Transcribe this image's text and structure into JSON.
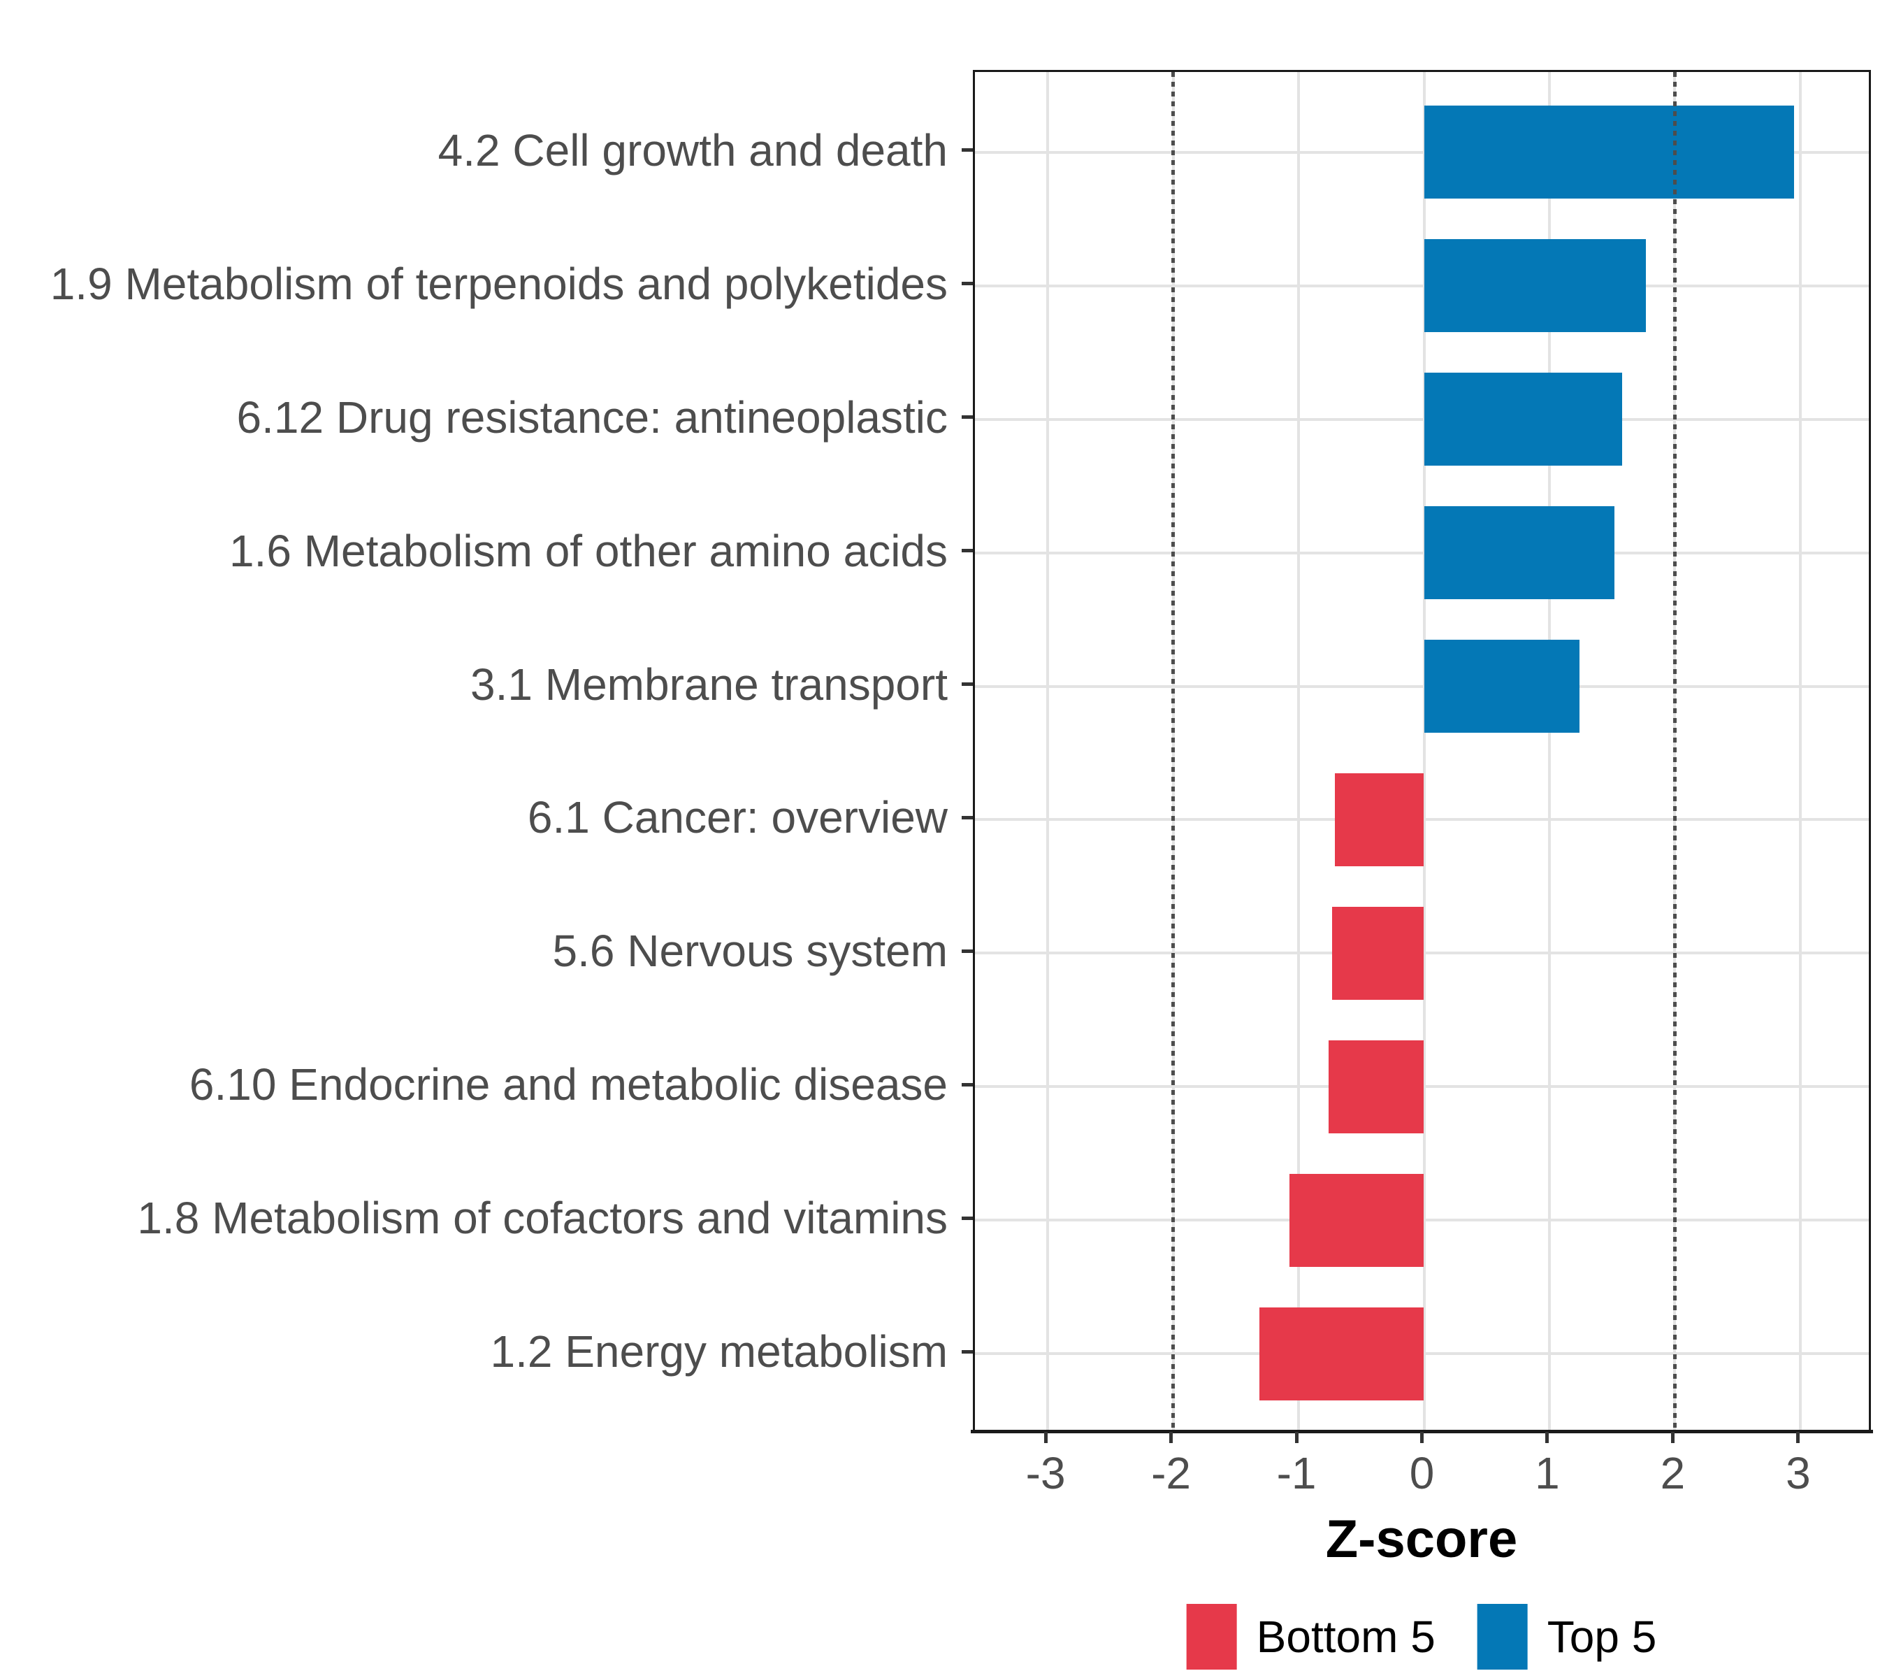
{
  "chart_data": {
    "type": "bar",
    "orientation": "horizontal",
    "title": "",
    "xlabel": "Z-score",
    "ylabel": "",
    "xlim": [
      -3.58,
      3.58
    ],
    "xticks": [
      -3,
      -2,
      -1,
      0,
      1,
      2,
      3
    ],
    "xtick_labels": [
      "-3",
      "-2",
      "-1",
      "0",
      "1",
      "2",
      "3"
    ],
    "reference_lines": [
      -2,
      2
    ],
    "grid": "major-only",
    "legend_position": "bottom",
    "categories": [
      "4.2 Cell growth and death",
      "1.9 Metabolism of terpenoids and polyketides",
      "6.12 Drug resistance: antineoplastic",
      "1.6 Metabolism of other amino acids",
      "3.1 Membrane transport",
      "6.1 Cancer: overview",
      "5.6 Nervous system",
      "6.10 Endocrine and metabolic disease",
      "1.8 Metabolism of cofactors and vitamins",
      "1.2 Energy metabolism"
    ],
    "values": [
      2.95,
      1.77,
      1.58,
      1.52,
      1.24,
      -0.71,
      -0.73,
      -0.76,
      -1.07,
      -1.31
    ],
    "groups": [
      "Top 5",
      "Top 5",
      "Top 5",
      "Top 5",
      "Top 5",
      "Bottom 5",
      "Bottom 5",
      "Bottom 5",
      "Bottom 5",
      "Bottom 5"
    ],
    "series_colors": {
      "Bottom 5": "#E6394A",
      "Top 5": "#0478B6"
    },
    "legend": [
      {
        "label": "Bottom 5",
        "color": "#E6394A"
      },
      {
        "label": "Top 5",
        "color": "#0478B6"
      }
    ],
    "colors": {
      "grid": "#e3e3e3",
      "reference_line": "#4d4d4d",
      "axis_text": "#4d4d4d",
      "panel_border": "#1a1a1a"
    }
  }
}
